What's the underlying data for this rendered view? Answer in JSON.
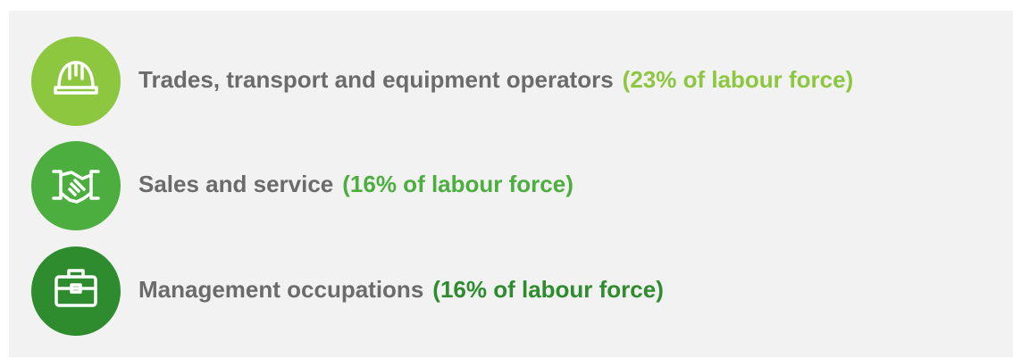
{
  "items": [
    {
      "label": "Trades, transport and equipment operators",
      "share": "(23% of labour force)"
    },
    {
      "label": "Sales and service",
      "share": "(16% of labour force)"
    },
    {
      "label": "Management occupations",
      "share": "(16% of labour force)"
    }
  ]
}
